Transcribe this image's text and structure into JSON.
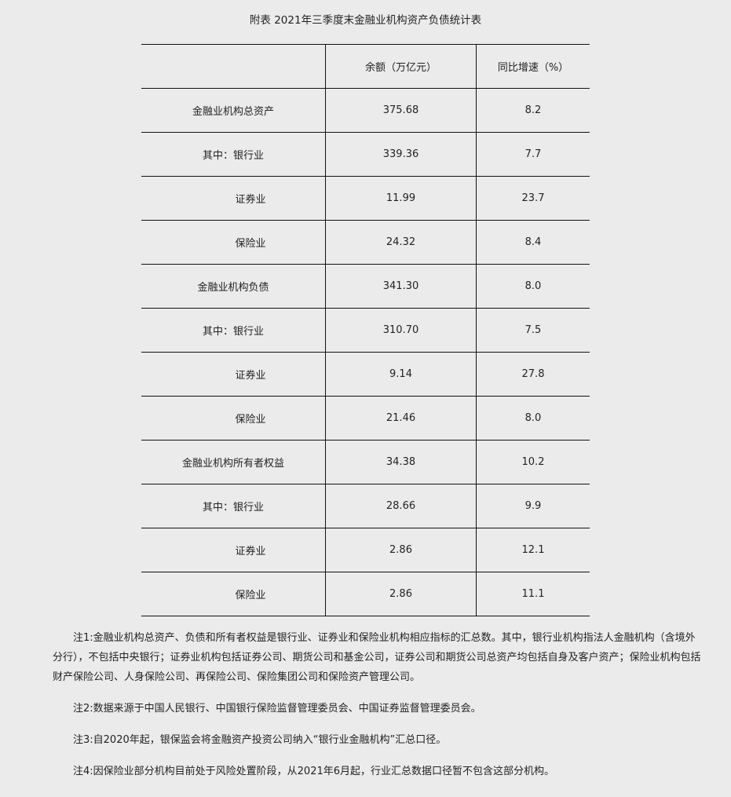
{
  "title": "附表 2021年三季度末金融业机构资产负债统计表",
  "table": {
    "headers": [
      "",
      "余额（万亿元）",
      "同比增速（%）"
    ],
    "rows": [
      {
        "label": "金融业机构总资产",
        "balance": "375.68",
        "growth": "8.2",
        "level": 0
      },
      {
        "label": "其中：银行业",
        "balance": "339.36",
        "growth": "7.7",
        "level": 1
      },
      {
        "label": "证券业",
        "balance": "11.99",
        "growth": "23.7",
        "level": 2
      },
      {
        "label": "保险业",
        "balance": "24.32",
        "growth": "8.4",
        "level": 2
      },
      {
        "label": "金融业机构负债",
        "balance": "341.30",
        "growth": "8.0",
        "level": 0
      },
      {
        "label": "其中：银行业",
        "balance": "310.70",
        "growth": "7.5",
        "level": 1
      },
      {
        "label": "证券业",
        "balance": "9.14",
        "growth": "27.8",
        "level": 2
      },
      {
        "label": "保险业",
        "balance": "21.46",
        "growth": "8.0",
        "level": 2
      },
      {
        "label": "金融业机构所有者权益",
        "balance": "34.38",
        "growth": "10.2",
        "level": 0
      },
      {
        "label": "其中：银行业",
        "balance": "28.66",
        "growth": "9.9",
        "level": 1
      },
      {
        "label": "证券业",
        "balance": "2.86",
        "growth": "12.1",
        "level": 2
      },
      {
        "label": "保险业",
        "balance": "2.86",
        "growth": "11.1",
        "level": 2
      }
    ]
  },
  "notes": [
    "注1:金融业机构总资产、负债和所有者权益是银行业、证券业和保险业机构相应指标的汇总数。其中，银行业机构指法人金融机构（含境外分行），不包括中央银行；证券业机构包括证券公司、期货公司和基金公司，证券公司和期货公司总资产均包括自身及客户资产；保险业机构包括财产保险公司、人身保险公司、再保险公司、保险集团公司和保险资产管理公司。",
    "注2:数据来源于中国人民银行、中国银行保险监督管理委员会、中国证券监督管理委员会。",
    "注3:自2020年起，银保监会将金融资产投资公司纳入“银行业金融机构”汇总口径。",
    "注4:因保险业部分机构目前处于风险处置阶段，从2021年6月起，行业汇总数据口径暂不包含这部分机构。"
  ]
}
